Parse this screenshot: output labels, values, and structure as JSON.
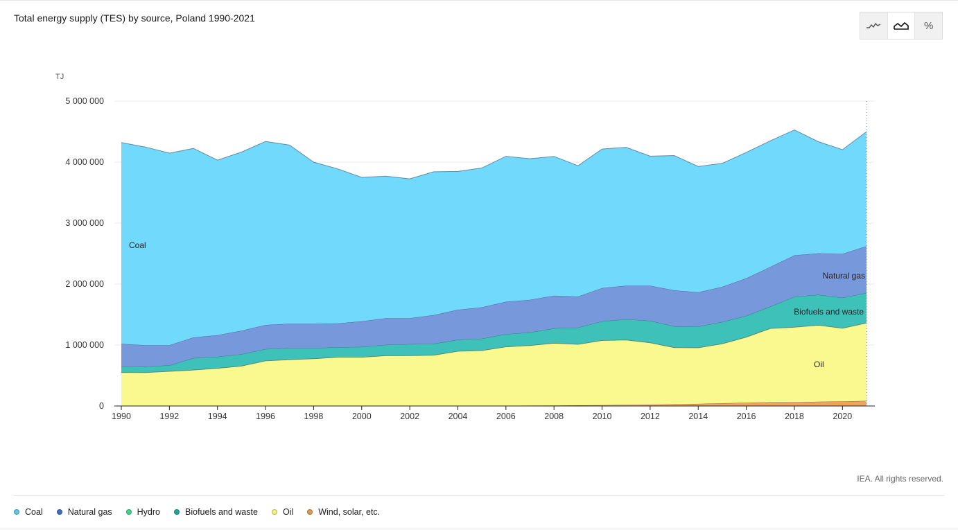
{
  "title": "Total energy supply (TES) by source, Poland 1990-2021",
  "credit": "IEA. All rights reserved.",
  "view_toggle": {
    "line_icon": "line-chart-icon",
    "area_icon": "area-chart-icon",
    "percent_label": "%",
    "active": "area"
  },
  "chart_data": {
    "type": "area",
    "stacked": true,
    "unit": "TJ",
    "x": [
      1990,
      1991,
      1992,
      1993,
      1994,
      1995,
      1996,
      1997,
      1998,
      1999,
      2000,
      2001,
      2002,
      2003,
      2004,
      2005,
      2006,
      2007,
      2008,
      2009,
      2010,
      2011,
      2012,
      2013,
      2014,
      2015,
      2016,
      2017,
      2018,
      2019,
      2020,
      2021
    ],
    "x_ticks": [
      "1990",
      "1992",
      "1994",
      "1996",
      "1998",
      "2000",
      "2002",
      "2004",
      "2006",
      "2008",
      "2010",
      "2012",
      "2014",
      "2016",
      "2018",
      "2020"
    ],
    "y_ticks": [
      "0",
      "1 000 000",
      "2 000 000",
      "3 000 000",
      "4 000 000",
      "5 000 000"
    ],
    "ylim": [
      0,
      5000000
    ],
    "series": [
      {
        "name": "Wind, solar, etc.",
        "color": "#F0A35E",
        "values": [
          0,
          0,
          0,
          0,
          0,
          0,
          0,
          0,
          0,
          0,
          0,
          0,
          1000,
          2000,
          3000,
          4000,
          5000,
          7000,
          9000,
          11000,
          15000,
          18000,
          23000,
          28000,
          35000,
          45000,
          55000,
          62000,
          62000,
          70000,
          75000,
          85000
        ]
      },
      {
        "name": "Oil",
        "color": "#FAF98F",
        "values": [
          550000,
          548000,
          568000,
          590000,
          618000,
          655000,
          740000,
          760000,
          775000,
          800000,
          800000,
          825000,
          825000,
          830000,
          895000,
          905000,
          965000,
          985000,
          1020000,
          1000000,
          1060000,
          1065000,
          1015000,
          930000,
          920000,
          975000,
          1075000,
          1210000,
          1230000,
          1255000,
          1200000,
          1275000
        ]
      },
      {
        "name": "Hydro",
        "color": "#4ED98E",
        "values": [
          5000,
          5000,
          5000,
          5000,
          5000,
          5000,
          5000,
          5000,
          5000,
          5000,
          5000,
          5000,
          5000,
          5000,
          5000,
          5000,
          5000,
          5000,
          5000,
          5000,
          5000,
          5000,
          5000,
          5000,
          5000,
          5000,
          5000,
          5000,
          5000,
          5000,
          5000,
          5000
        ]
      },
      {
        "name": "Biofuels and waste",
        "color": "#3DC1B9",
        "values": [
          95000,
          95000,
          95000,
          190000,
          185000,
          190000,
          190000,
          185000,
          170000,
          160000,
          165000,
          175000,
          185000,
          185000,
          185000,
          190000,
          205000,
          210000,
          240000,
          270000,
          310000,
          335000,
          355000,
          345000,
          345000,
          355000,
          345000,
          355000,
          495000,
          495000,
          495000,
          490000
        ]
      },
      {
        "name": "Natural gas",
        "color": "#7898DC",
        "values": [
          370000,
          350000,
          330000,
          340000,
          355000,
          385000,
          395000,
          400000,
          400000,
          390000,
          420000,
          435000,
          425000,
          470000,
          490000,
          515000,
          530000,
          535000,
          535000,
          510000,
          545000,
          550000,
          575000,
          590000,
          560000,
          575000,
          615000,
          650000,
          680000,
          680000,
          720000,
          765000
        ]
      },
      {
        "name": "Coal",
        "color": "#71D9FB",
        "values": [
          3300000,
          3250000,
          3150000,
          3100000,
          2870000,
          2930000,
          3010000,
          2930000,
          2650000,
          2535000,
          2360000,
          2330000,
          2285000,
          2350000,
          2270000,
          2285000,
          2385000,
          2315000,
          2285000,
          2145000,
          2280000,
          2270000,
          2125000,
          2210000,
          2065000,
          2025000,
          2065000,
          2068000,
          2055000,
          1830000,
          1710000,
          1880000
        ]
      }
    ],
    "area_labels": {
      "coal": "Coal",
      "natural_gas": "Natural gas",
      "biofuels": "Biofuels and waste",
      "oil": "Oil"
    },
    "legend": [
      {
        "name": "Coal",
        "color": "#5BC8E8"
      },
      {
        "name": "Natural gas",
        "color": "#3F6FC2"
      },
      {
        "name": "Hydro",
        "color": "#41D489"
      },
      {
        "name": "Biofuels and waste",
        "color": "#24A59C"
      },
      {
        "name": "Oil",
        "color": "#F5F07A"
      },
      {
        "name": "Wind, solar, etc.",
        "color": "#E3994D"
      }
    ]
  }
}
